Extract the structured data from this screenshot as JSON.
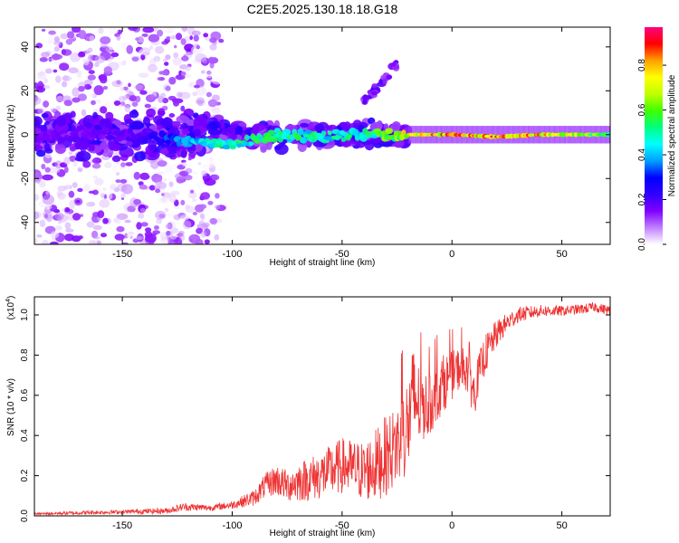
{
  "title": "C2E5.2025.130.18.18.G18",
  "chart_data": [
    {
      "type": "heatmap",
      "xlabel": "Height of straight line (km)",
      "ylabel": "Frequency (Hz)",
      "xlim": [
        -190,
        72
      ],
      "ylim": [
        -50,
        49
      ],
      "xticks": [
        -150,
        -100,
        -50,
        0,
        50
      ],
      "yticks": [
        -40,
        -20,
        0,
        20,
        40
      ],
      "colorbar": {
        "label": "Normalized spectral amplitude",
        "range": [
          0,
          0.97
        ],
        "ticks": [
          "0.0",
          "0.2",
          "0.4",
          "0.6",
          "0.8"
        ],
        "tick_values": [
          0,
          0.2,
          0.4,
          0.6,
          0.8
        ],
        "colors": [
          "#ffffff",
          "#c080ff",
          "#8000ff",
          "#3000ff",
          "#0000ff",
          "#00a0ff",
          "#00ffff",
          "#00ff80",
          "#40ff00",
          "#c0ff00",
          "#ffff00",
          "#ffa000",
          "#ff0000",
          "#ff0080"
        ]
      },
      "features": [
        {
          "name": "scattered noise",
          "x_range": [
            -190,
            -105
          ],
          "y_range": [
            -50,
            49
          ],
          "amplitude": [
            0.0,
            0.15
          ]
        },
        {
          "name": "broadband central band",
          "x_range": [
            -190,
            -20
          ],
          "y_range": [
            -14,
            14
          ],
          "amplitude": [
            0.1,
            0.25
          ]
        },
        {
          "name": "tone line",
          "x": [
            -190,
            -140,
            -120,
            -100,
            -80,
            -60,
            -40,
            -20,
            0,
            20,
            40,
            72
          ],
          "y": [
            0,
            0,
            -3,
            -4,
            0,
            -1,
            0,
            0,
            0,
            -1,
            0,
            0
          ],
          "amplitude": [
            0.15,
            0.2,
            0.45,
            0.5,
            0.55,
            0.5,
            0.5,
            0.75,
            0.85,
            0.85,
            0.8,
            0.6
          ]
        },
        {
          "name": "rising branch",
          "x_range": [
            -40,
            -25
          ],
          "y_range": [
            15,
            32
          ],
          "amplitude": [
            0.1,
            0.2
          ]
        }
      ]
    },
    {
      "type": "line",
      "xlabel": "Height of straight line (km)",
      "ylabel": "SNR (10 * v/v)",
      "yscale_label": "(x10",
      "yscale_exponent": "4",
      "yscale_suffix": ")",
      "xlim": [
        -190,
        72
      ],
      "ylim": [
        0,
        1.09
      ],
      "xticks": [
        -150,
        -100,
        -50,
        0,
        50
      ],
      "yticks": [
        "0.0",
        "0.2",
        "0.4",
        "0.6",
        "0.8",
        "1.0"
      ],
      "ytick_values": [
        0,
        0.2,
        0.4,
        0.6,
        0.8,
        1.0
      ],
      "series": [
        {
          "color": "#ee3333",
          "x": [
            -190,
            -170,
            -150,
            -130,
            -122,
            -110,
            -100,
            -90,
            -85,
            -80,
            -75,
            -70,
            -60,
            -50,
            -40,
            -35,
            -30,
            -25,
            -20,
            -17,
            -15,
            -10,
            -5,
            0,
            5,
            8,
            10,
            12,
            15,
            20,
            25,
            30,
            40,
            50,
            60,
            65,
            72
          ],
          "y": [
            0.01,
            0.015,
            0.02,
            0.025,
            0.045,
            0.04,
            0.055,
            0.09,
            0.15,
            0.18,
            0.15,
            0.17,
            0.2,
            0.25,
            0.22,
            0.25,
            0.3,
            0.35,
            0.45,
            0.6,
            0.55,
            0.55,
            0.65,
            0.7,
            0.75,
            0.72,
            0.6,
            0.7,
            0.8,
            0.9,
            0.96,
            1.0,
            1.02,
            1.02,
            1.03,
            1.04,
            1.02
          ],
          "spread": [
            0.005,
            0.01,
            0.01,
            0.015,
            0.02,
            0.015,
            0.02,
            0.04,
            0.06,
            0.08,
            0.08,
            0.1,
            0.12,
            0.14,
            0.15,
            0.18,
            0.2,
            0.2,
            0.25,
            0.3,
            0.2,
            0.15,
            0.15,
            0.12,
            0.1,
            0.15,
            0.12,
            0.1,
            0.1,
            0.07,
            0.05,
            0.04,
            0.03,
            0.025,
            0.025,
            0.025,
            0.025
          ]
        }
      ]
    }
  ]
}
